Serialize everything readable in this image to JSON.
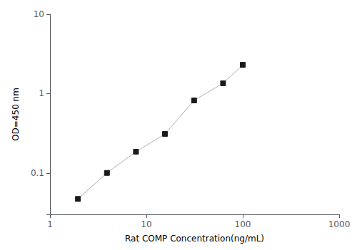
{
  "chart_data": {
    "type": "line",
    "x": [
      1.95,
      3.9,
      7.8,
      15.6,
      31.25,
      62.5,
      100
    ],
    "values": [
      0.047,
      0.1,
      0.185,
      0.31,
      0.82,
      1.35,
      2.3
    ],
    "xlabel": "Rat COMP Concentration(ng/mL)",
    "ylabel": "OD=450 nm",
    "xlim": [
      1,
      1000
    ],
    "ylim": [
      0.03,
      10
    ],
    "xticks": [
      1,
      10,
      100,
      1000
    ],
    "yticks": [
      0.1,
      1,
      10
    ],
    "log": true,
    "grid": false,
    "color": "#b0b0b0",
    "colors": [
      "#1a1a1a",
      "#1a1a1a",
      "#1a1a1a",
      "#1a1a1a",
      "#1a1a1a",
      "#1a1a1a",
      "#1a1a1a"
    ],
    "marker": "square"
  }
}
